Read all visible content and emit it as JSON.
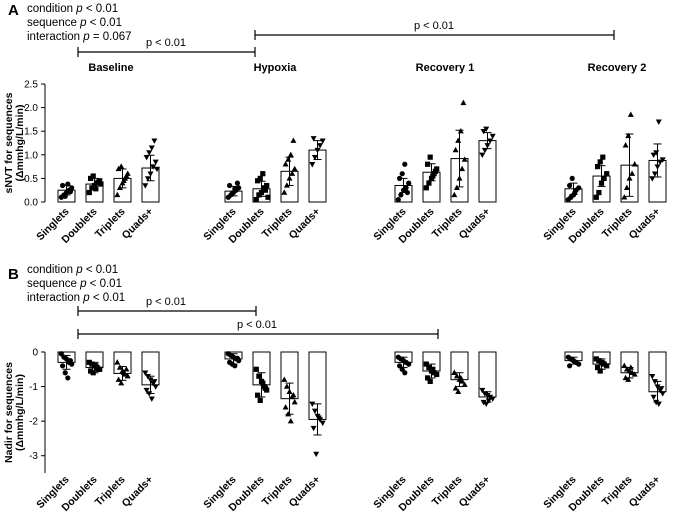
{
  "panels": {
    "A": {
      "label": "A",
      "stats": [
        "condition p < 0.01",
        "sequence p < 0.01",
        "interaction p = 0.067"
      ],
      "stats_parts": [
        {
          "pre": "condition ",
          "p": "p",
          "post": " < 0.01"
        },
        {
          "pre": "sequence ",
          "p": "p",
          "post": " < 0.01"
        },
        {
          "pre": "interaction ",
          "p": "p",
          "post": " = 0.067"
        }
      ],
      "brackets": [
        {
          "from": "Baseline",
          "to": "Hypoxia",
          "label": "p < 0.01"
        },
        {
          "from": "Hypoxia",
          "to": "Recovery 2",
          "label": "p < 0.01"
        }
      ]
    },
    "B": {
      "label": "B",
      "stats": [
        "condition p < 0.01",
        "sequence p < 0.01",
        "interaction p < 0.01"
      ],
      "stats_parts": [
        {
          "pre": "condition ",
          "p": "p",
          "post": " < 0.01"
        },
        {
          "pre": "sequence ",
          "p": "p",
          "post": " < 0.01"
        },
        {
          "pre": "interaction ",
          "p": "p",
          "post": " < 0.01"
        }
      ],
      "brackets": [
        {
          "from": "Baseline",
          "to": "Hypoxia",
          "label": "p < 0.01"
        },
        {
          "from": "Baseline",
          "to": "Recovery 1",
          "label": "p < 0.01"
        }
      ]
    }
  },
  "colors": {
    "ink": "#000000",
    "fill": "#ffffff",
    "gridline": "#cccccc"
  },
  "chart_data": [
    {
      "id": "A",
      "type": "bar",
      "title": "",
      "ylabel": "sNVT for sequences (Δmmhg/L/min)",
      "ylabel_lines": [
        "sNVT for sequences",
        "(Δmmhg/L/min)"
      ],
      "ylim": [
        0,
        2.5
      ],
      "yticks": [
        "0.0",
        "0.5",
        "1.0",
        "1.5",
        "2.0",
        "2.5"
      ],
      "yticks_values": [
        0,
        0.5,
        1.0,
        1.5,
        2.0,
        2.5
      ],
      "conditions": [
        "Baseline",
        "Hypoxia",
        "Recovery 1",
        "Recovery 2"
      ],
      "categories": [
        "Singlets",
        "Doublets",
        "Triplets",
        "Quads+"
      ],
      "markers": [
        "circle",
        "square",
        "triangle-up",
        "triangle-down"
      ],
      "series": [
        {
          "condition": "Baseline",
          "mean": [
            0.25,
            0.38,
            0.5,
            0.72
          ],
          "sd": [
            0.1,
            0.12,
            0.2,
            0.27
          ],
          "points": [
            [
              0.1,
              0.15,
              0.2,
              0.25,
              0.3,
              0.35,
              0.12,
              0.38,
              0.22
            ],
            [
              0.2,
              0.3,
              0.35,
              0.4,
              0.45,
              0.5,
              0.55,
              0.28,
              0.42,
              0.38
            ],
            [
              0.15,
              0.3,
              0.4,
              0.5,
              0.6,
              0.7,
              0.75,
              0.45,
              0.55
            ],
            [
              0.35,
              0.5,
              0.6,
              0.75,
              0.85,
              0.95,
              1.05,
              1.15,
              1.3,
              0.7
            ]
          ]
        },
        {
          "condition": "Hypoxia",
          "mean": [
            0.23,
            0.28,
            0.65,
            1.1
          ],
          "sd": [
            0.1,
            0.16,
            0.3,
            0.2
          ],
          "points": [
            [
              0.1,
              0.15,
              0.2,
              0.25,
              0.3,
              0.35,
              0.18,
              0.28,
              0.4
            ],
            [
              0.05,
              0.15,
              0.2,
              0.3,
              0.35,
              0.45,
              0.5,
              0.6,
              0.25,
              0.1
            ],
            [
              0.2,
              0.35,
              0.5,
              0.6,
              0.7,
              0.8,
              0.9,
              1.0,
              1.3
            ],
            [
              0.8,
              0.95,
              1.1,
              1.2,
              1.3,
              1.35
            ]
          ]
        },
        {
          "condition": "Recovery 1",
          "mean": [
            0.35,
            0.63,
            0.92,
            1.3
          ],
          "sd": [
            0.15,
            0.18,
            0.6,
            0.17
          ],
          "points": [
            [
              0.05,
              0.15,
              0.25,
              0.3,
              0.4,
              0.5,
              0.6,
              0.8,
              0.2
            ],
            [
              0.3,
              0.4,
              0.5,
              0.6,
              0.7,
              0.8,
              0.95,
              0.55,
              0.65
            ],
            [
              0.15,
              0.3,
              0.5,
              0.7,
              0.9,
              1.1,
              1.3,
              1.5,
              2.1
            ],
            [
              1.0,
              1.1,
              1.2,
              1.3,
              1.4,
              1.5,
              1.55
            ]
          ]
        },
        {
          "condition": "Recovery 2",
          "mean": [
            0.28,
            0.55,
            0.78,
            0.88
          ],
          "sd": [
            0.12,
            0.22,
            0.66,
            0.35
          ],
          "points": [
            [
              0.05,
              0.1,
              0.15,
              0.25,
              0.3,
              0.35,
              0.5,
              0.2
            ],
            [
              0.1,
              0.2,
              0.4,
              0.5,
              0.6,
              0.75,
              0.85,
              0.95
            ],
            [
              0.1,
              0.3,
              0.5,
              0.6,
              0.8,
              1.2,
              1.4,
              1.85
            ],
            [
              0.5,
              0.6,
              0.75,
              0.85,
              0.9,
              1.0,
              1.05,
              1.7
            ]
          ]
        }
      ]
    },
    {
      "id": "B",
      "type": "bar",
      "title": "",
      "ylabel": "Nadir for sequences (Δmmhg/L/min)",
      "ylabel_lines": [
        "Nadir for sequences",
        "(Δmmhg/L/min)"
      ],
      "ylim": [
        -3.5,
        0
      ],
      "yticks": [
        "0",
        "-1",
        "-2",
        "-3"
      ],
      "yticks_values": [
        0,
        -1,
        -2,
        -3
      ],
      "conditions": [
        "Baseline",
        "Hypoxia",
        "Recovery 1",
        "Recovery 2"
      ],
      "categories": [
        "Singlets",
        "Doublets",
        "Triplets",
        "Quads+"
      ],
      "markers": [
        "circle",
        "square",
        "triangle-up",
        "triangle-down"
      ],
      "series": [
        {
          "condition": "Baseline",
          "mean": [
            -0.3,
            -0.45,
            -0.62,
            -0.95
          ],
          "sd": [
            0.2,
            0.15,
            0.2,
            0.25
          ],
          "points": [
            [
              -0.05,
              -0.15,
              -0.2,
              -0.3,
              -0.35,
              -0.4,
              -0.6,
              -0.75,
              -0.25
            ],
            [
              -0.3,
              -0.35,
              -0.4,
              -0.45,
              -0.5,
              -0.55,
              -0.6,
              -0.4,
              -0.5
            ],
            [
              -0.3,
              -0.45,
              -0.55,
              -0.65,
              -0.7,
              -0.8,
              -0.9,
              -0.6,
              -0.5
            ],
            [
              -0.6,
              -0.7,
              -0.8,
              -0.9,
              -1.0,
              -1.1,
              -1.2,
              -1.35,
              -0.85
            ]
          ]
        },
        {
          "condition": "Hypoxia",
          "mean": [
            -0.2,
            -0.95,
            -1.35,
            -1.95
          ],
          "sd": [
            0.15,
            0.35,
            0.45,
            0.45
          ],
          "points": [
            [
              -0.05,
              -0.1,
              -0.15,
              -0.2,
              -0.25,
              -0.3,
              -0.35,
              -0.4,
              -0.18
            ],
            [
              -0.5,
              -0.7,
              -0.85,
              -1.0,
              -1.1,
              -1.25,
              -1.4,
              -0.9,
              -1.05
            ],
            [
              -0.8,
              -1.0,
              -1.15,
              -1.3,
              -1.45,
              -1.6,
              -1.8,
              -2.0,
              -1.25
            ],
            [
              -1.5,
              -1.7,
              -1.85,
              -1.95,
              -2.05,
              -2.2,
              -2.95,
              -1.9
            ]
          ]
        },
        {
          "condition": "Recovery 1",
          "mean": [
            -0.3,
            -0.55,
            -0.8,
            -1.3
          ],
          "sd": [
            0.15,
            0.2,
            0.2,
            0.15
          ],
          "points": [
            [
              -0.15,
              -0.2,
              -0.25,
              -0.3,
              -0.35,
              -0.4,
              -0.5,
              -0.6
            ],
            [
              -0.35,
              -0.45,
              -0.55,
              -0.6,
              -0.65,
              -0.75,
              -0.85,
              -0.5
            ],
            [
              -0.6,
              -0.7,
              -0.8,
              -0.85,
              -0.95,
              -1.05,
              -1.15,
              -0.75
            ],
            [
              -1.1,
              -1.2,
              -1.25,
              -1.3,
              -1.35,
              -1.45,
              -1.5,
              -1.4
            ]
          ]
        },
        {
          "condition": "Recovery 2",
          "mean": [
            -0.25,
            -0.35,
            -0.6,
            -1.15
          ],
          "sd": [
            0.1,
            0.15,
            0.15,
            0.3
          ],
          "points": [
            [
              -0.15,
              -0.2,
              -0.25,
              -0.3,
              -0.35,
              -0.4,
              -0.22,
              -0.28
            ],
            [
              -0.2,
              -0.25,
              -0.3,
              -0.35,
              -0.4,
              -0.45,
              -0.55,
              -0.32
            ],
            [
              -0.4,
              -0.5,
              -0.55,
              -0.6,
              -0.65,
              -0.75,
              -0.8,
              -0.45
            ],
            [
              -0.7,
              -0.85,
              -1.0,
              -1.1,
              -1.2,
              -1.3,
              -1.45,
              -1.5,
              -1.05
            ]
          ]
        }
      ]
    }
  ]
}
